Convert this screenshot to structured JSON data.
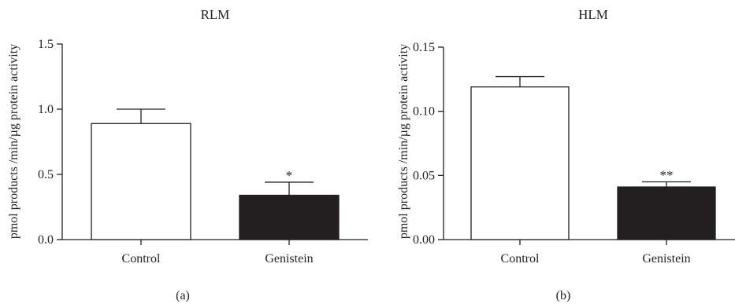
{
  "chart_data": [
    {
      "type": "bar",
      "panel_label": "(a)",
      "title": "RLM",
      "ylabel": "pmol products /min/µg protein activity",
      "xlabel": "",
      "categories": [
        "Control",
        "Genistein"
      ],
      "values": [
        0.89,
        0.34
      ],
      "errors": [
        0.11,
        0.1
      ],
      "significance": [
        "",
        "*"
      ],
      "bar_fill": [
        "#ffffff",
        "#231f20"
      ],
      "ylim": [
        0,
        1.5
      ],
      "yticks": [
        "0.0",
        "0.5",
        "1.0",
        "1.5"
      ],
      "ytick_values": [
        0,
        0.5,
        1.0,
        1.5
      ],
      "grid": false
    },
    {
      "type": "bar",
      "panel_label": "(b)",
      "title": "HLM",
      "ylabel": "pmol products /min/µg protein activity",
      "xlabel": "",
      "categories": [
        "Control",
        "Genistein"
      ],
      "values": [
        0.119,
        0.041
      ],
      "errors": [
        0.008,
        0.004
      ],
      "significance": [
        "",
        "**"
      ],
      "bar_fill": [
        "#ffffff",
        "#231f20"
      ],
      "ylim": [
        0,
        0.15
      ],
      "yticks": [
        "0.00",
        "0.05",
        "0.10",
        "0.15"
      ],
      "ytick_values": [
        0,
        0.05,
        0.1,
        0.15
      ],
      "grid": false
    }
  ]
}
